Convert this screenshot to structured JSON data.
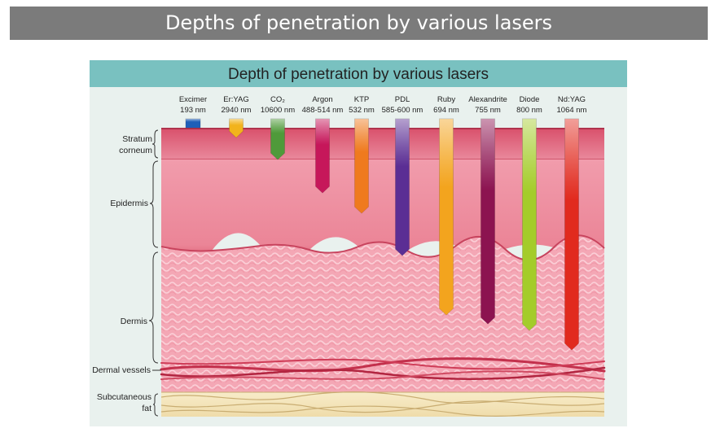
{
  "slide_title": "Depths of penetration by various lasers",
  "figure_title": "Depth of penetration by various lasers",
  "lasers": [
    {
      "name": "Excimer",
      "wavelength": "193 nm",
      "depth_layer": "Stratum corneum surface",
      "color": "#1f5fb8"
    },
    {
      "name": "Er:YAG",
      "wavelength": "2940 nm",
      "depth_layer": "Stratum corneum",
      "color": "#f2b31c"
    },
    {
      "name": "CO₂",
      "wavelength": "10600 nm",
      "depth_layer": "Upper epidermis",
      "color": "#4f9a3a"
    },
    {
      "name": "Argon",
      "wavelength": "488-514 nm",
      "depth_layer": "Epidermis",
      "color": "#c6175a"
    },
    {
      "name": "KTP",
      "wavelength": "532 nm",
      "depth_layer": "Epidermis",
      "color": "#ef7a1e"
    },
    {
      "name": "PDL",
      "wavelength": "585-600 nm",
      "depth_layer": "Upper dermis",
      "color": "#5b2e94"
    },
    {
      "name": "Ruby",
      "wavelength": "694 nm",
      "depth_layer": "Dermis",
      "color": "#f3a41e"
    },
    {
      "name": "Alexandrite",
      "wavelength": "755 nm",
      "depth_layer": "Dermis",
      "color": "#8c1350"
    },
    {
      "name": "Diode",
      "wavelength": "800 nm",
      "depth_layer": "Dermis",
      "color": "#a4cc2a"
    },
    {
      "name": "Nd:YAG",
      "wavelength": "1064 nm",
      "depth_layer": "Dermal vessels",
      "color": "#e12a1e"
    }
  ],
  "layers": [
    {
      "line1": "Stratum",
      "line2": "corneum"
    },
    {
      "line1": "Epidermis",
      "line2": ""
    },
    {
      "line1": "Dermis",
      "line2": ""
    },
    {
      "line1": "Dermal vessels",
      "line2": ""
    },
    {
      "line1": "Subcutaneous",
      "line2": "fat"
    }
  ]
}
